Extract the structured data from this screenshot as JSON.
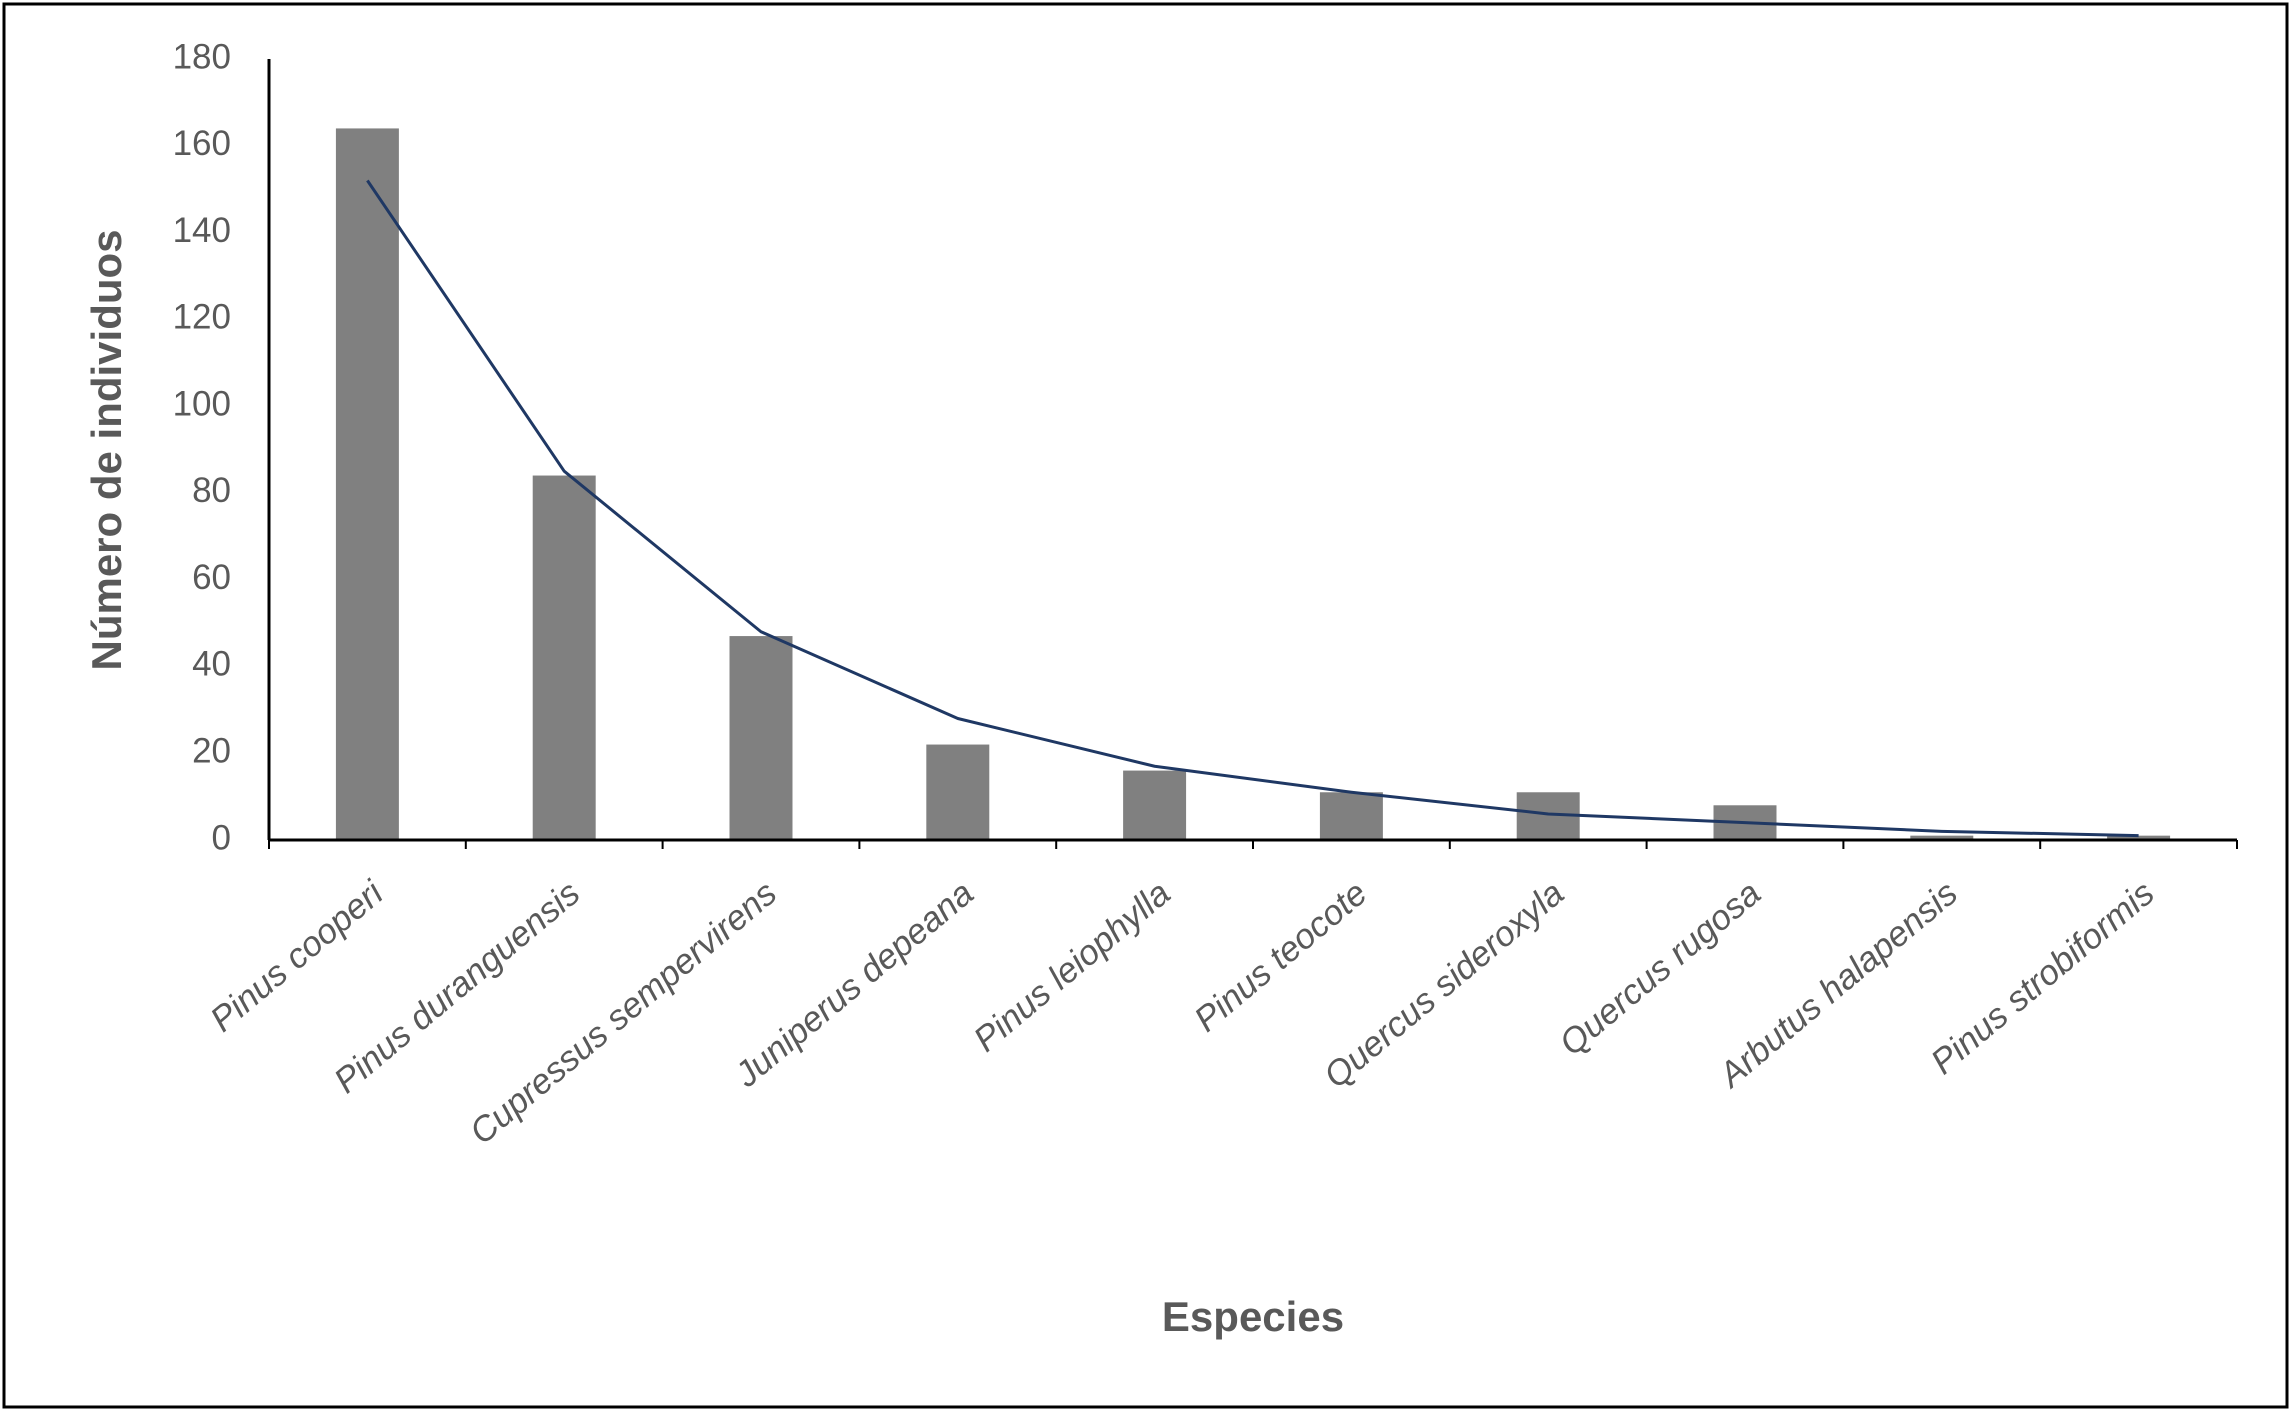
{
  "chart_data": {
    "type": "bar",
    "x_label": "Especies",
    "y_label": "Número de individuos",
    "categories": [
      "Pinus cooperi",
      "Pinus duranguensis",
      "Cupressus sempervirens",
      "Juniperus depeana",
      "Pinus leiophylla",
      "Pinus teocote",
      "Quercus sideroxyla",
      "Quercus rugosa",
      "Arbutus halapensis",
      "Pinus strobiformis"
    ],
    "values": [
      164,
      84,
      47,
      22,
      16,
      11,
      11,
      8,
      1,
      1
    ],
    "color": "#808080",
    "trendline": {
      "color": "#1f3864",
      "values": [
        152,
        85,
        48,
        28,
        17,
        11,
        6,
        4,
        2,
        1
      ]
    },
    "ylim": [
      0,
      180
    ],
    "yticks": [
      0,
      20,
      40,
      60,
      80,
      100,
      120,
      140,
      160,
      180
    ],
    "grid": false
  }
}
